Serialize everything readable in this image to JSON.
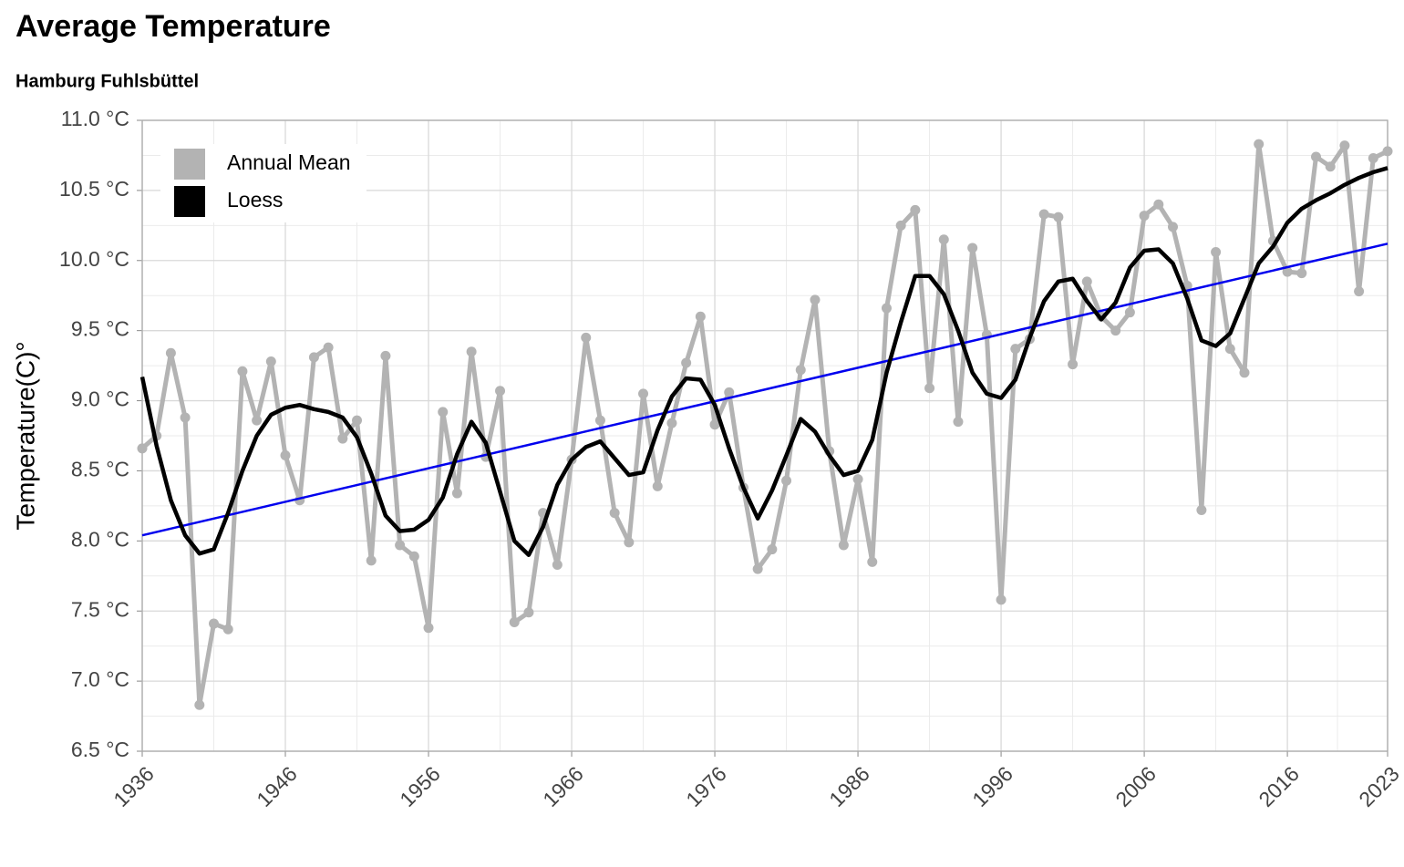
{
  "chart_data": {
    "type": "line",
    "title": "Average Temperature",
    "subtitle": "Hamburg Fuhlsbüttel",
    "ylabel": "Temperature(C)°",
    "x": [
      1936,
      1937,
      1938,
      1939,
      1940,
      1941,
      1942,
      1943,
      1944,
      1945,
      1946,
      1947,
      1948,
      1949,
      1950,
      1951,
      1952,
      1953,
      1954,
      1955,
      1956,
      1957,
      1958,
      1959,
      1960,
      1961,
      1962,
      1963,
      1964,
      1965,
      1966,
      1967,
      1968,
      1969,
      1970,
      1971,
      1972,
      1973,
      1974,
      1975,
      1976,
      1977,
      1978,
      1979,
      1980,
      1981,
      1982,
      1983,
      1984,
      1985,
      1986,
      1987,
      1988,
      1989,
      1990,
      1991,
      1992,
      1993,
      1994,
      1995,
      1996,
      1997,
      1998,
      1999,
      2000,
      2001,
      2002,
      2003,
      2004,
      2005,
      2006,
      2007,
      2008,
      2009,
      2010,
      2011,
      2012,
      2013,
      2014,
      2015,
      2016,
      2017,
      2018,
      2019,
      2020,
      2021,
      2022,
      2023
    ],
    "series": [
      {
        "name": "Annual Mean",
        "color": "#b3b3b3",
        "markers": true,
        "values": [
          8.66,
          8.75,
          9.34,
          8.88,
          6.83,
          7.41,
          7.37,
          9.21,
          8.86,
          9.28,
          8.61,
          8.29,
          9.31,
          9.38,
          8.73,
          8.86,
          7.86,
          9.32,
          7.97,
          7.89,
          7.38,
          8.92,
          8.34,
          9.35,
          8.6,
          9.07,
          7.42,
          7.49,
          8.2,
          7.83,
          8.58,
          9.45,
          8.86,
          8.2,
          7.99,
          9.05,
          8.39,
          8.84,
          9.27,
          9.6,
          8.83,
          9.06,
          8.38,
          7.8,
          7.94,
          8.43,
          9.22,
          9.72,
          8.64,
          7.97,
          8.44,
          7.85,
          9.66,
          10.25,
          10.36,
          9.09,
          10.15,
          8.85,
          10.09,
          9.47,
          7.58,
          9.37,
          9.44,
          10.33,
          10.31,
          9.26,
          9.85,
          9.6,
          9.5,
          9.63,
          10.32,
          10.4,
          10.24,
          9.82,
          8.22,
          10.06,
          9.37,
          9.2,
          10.83,
          10.14,
          9.92,
          9.91,
          10.74,
          10.67,
          10.82,
          9.78,
          10.73,
          10.78
        ]
      },
      {
        "name": "Loess",
        "color": "#000000",
        "markers": false,
        "values": [
          9.17,
          8.68,
          8.29,
          8.04,
          7.91,
          7.94,
          8.2,
          8.5,
          8.75,
          8.9,
          8.95,
          8.97,
          8.94,
          8.92,
          8.88,
          8.74,
          8.48,
          8.18,
          8.07,
          8.08,
          8.15,
          8.31,
          8.62,
          8.85,
          8.7,
          8.35,
          8.0,
          7.9,
          8.1,
          8.4,
          8.58,
          8.67,
          8.71,
          8.59,
          8.47,
          8.49,
          8.79,
          9.03,
          9.16,
          9.15,
          8.97,
          8.66,
          8.38,
          8.16,
          8.36,
          8.61,
          8.87,
          8.78,
          8.61,
          8.47,
          8.5,
          8.72,
          9.2,
          9.56,
          9.89,
          9.89,
          9.76,
          9.5,
          9.2,
          9.05,
          9.02,
          9.15,
          9.45,
          9.71,
          9.85,
          9.87,
          9.71,
          9.58,
          9.7,
          9.95,
          10.07,
          10.08,
          9.98,
          9.73,
          9.43,
          9.39,
          9.48,
          9.73,
          9.98,
          10.1,
          10.27,
          10.37,
          10.43,
          10.48,
          10.54,
          10.59,
          10.63,
          10.66
        ]
      }
    ],
    "trend_line": {
      "color": "#0000ee",
      "x": [
        1936,
        2023
      ],
      "values": [
        8.04,
        10.12
      ]
    },
    "xlim": [
      1936,
      2023
    ],
    "xticks": [
      1936,
      1946,
      1956,
      1966,
      1976,
      1986,
      1996,
      2006,
      2016,
      2023
    ],
    "ylim": [
      6.5,
      11.0
    ],
    "yticks": [
      {
        "value": 6.5,
        "label": "6.5 °C"
      },
      {
        "value": 7.0,
        "label": "7.0 °C"
      },
      {
        "value": 7.5,
        "label": "7.5 °C"
      },
      {
        "value": 8.0,
        "label": "8.0 °C"
      },
      {
        "value": 8.5,
        "label": "8.5 °C"
      },
      {
        "value": 9.0,
        "label": "9.0 °C"
      },
      {
        "value": 9.5,
        "label": "9.5 °C"
      },
      {
        "value": 10.0,
        "label": "10.0 °C"
      },
      {
        "value": 10.5,
        "label": "10.5 °C"
      },
      {
        "value": 11.0,
        "label": "11.0 °C"
      }
    ],
    "grid": true,
    "legend": "top-left"
  }
}
